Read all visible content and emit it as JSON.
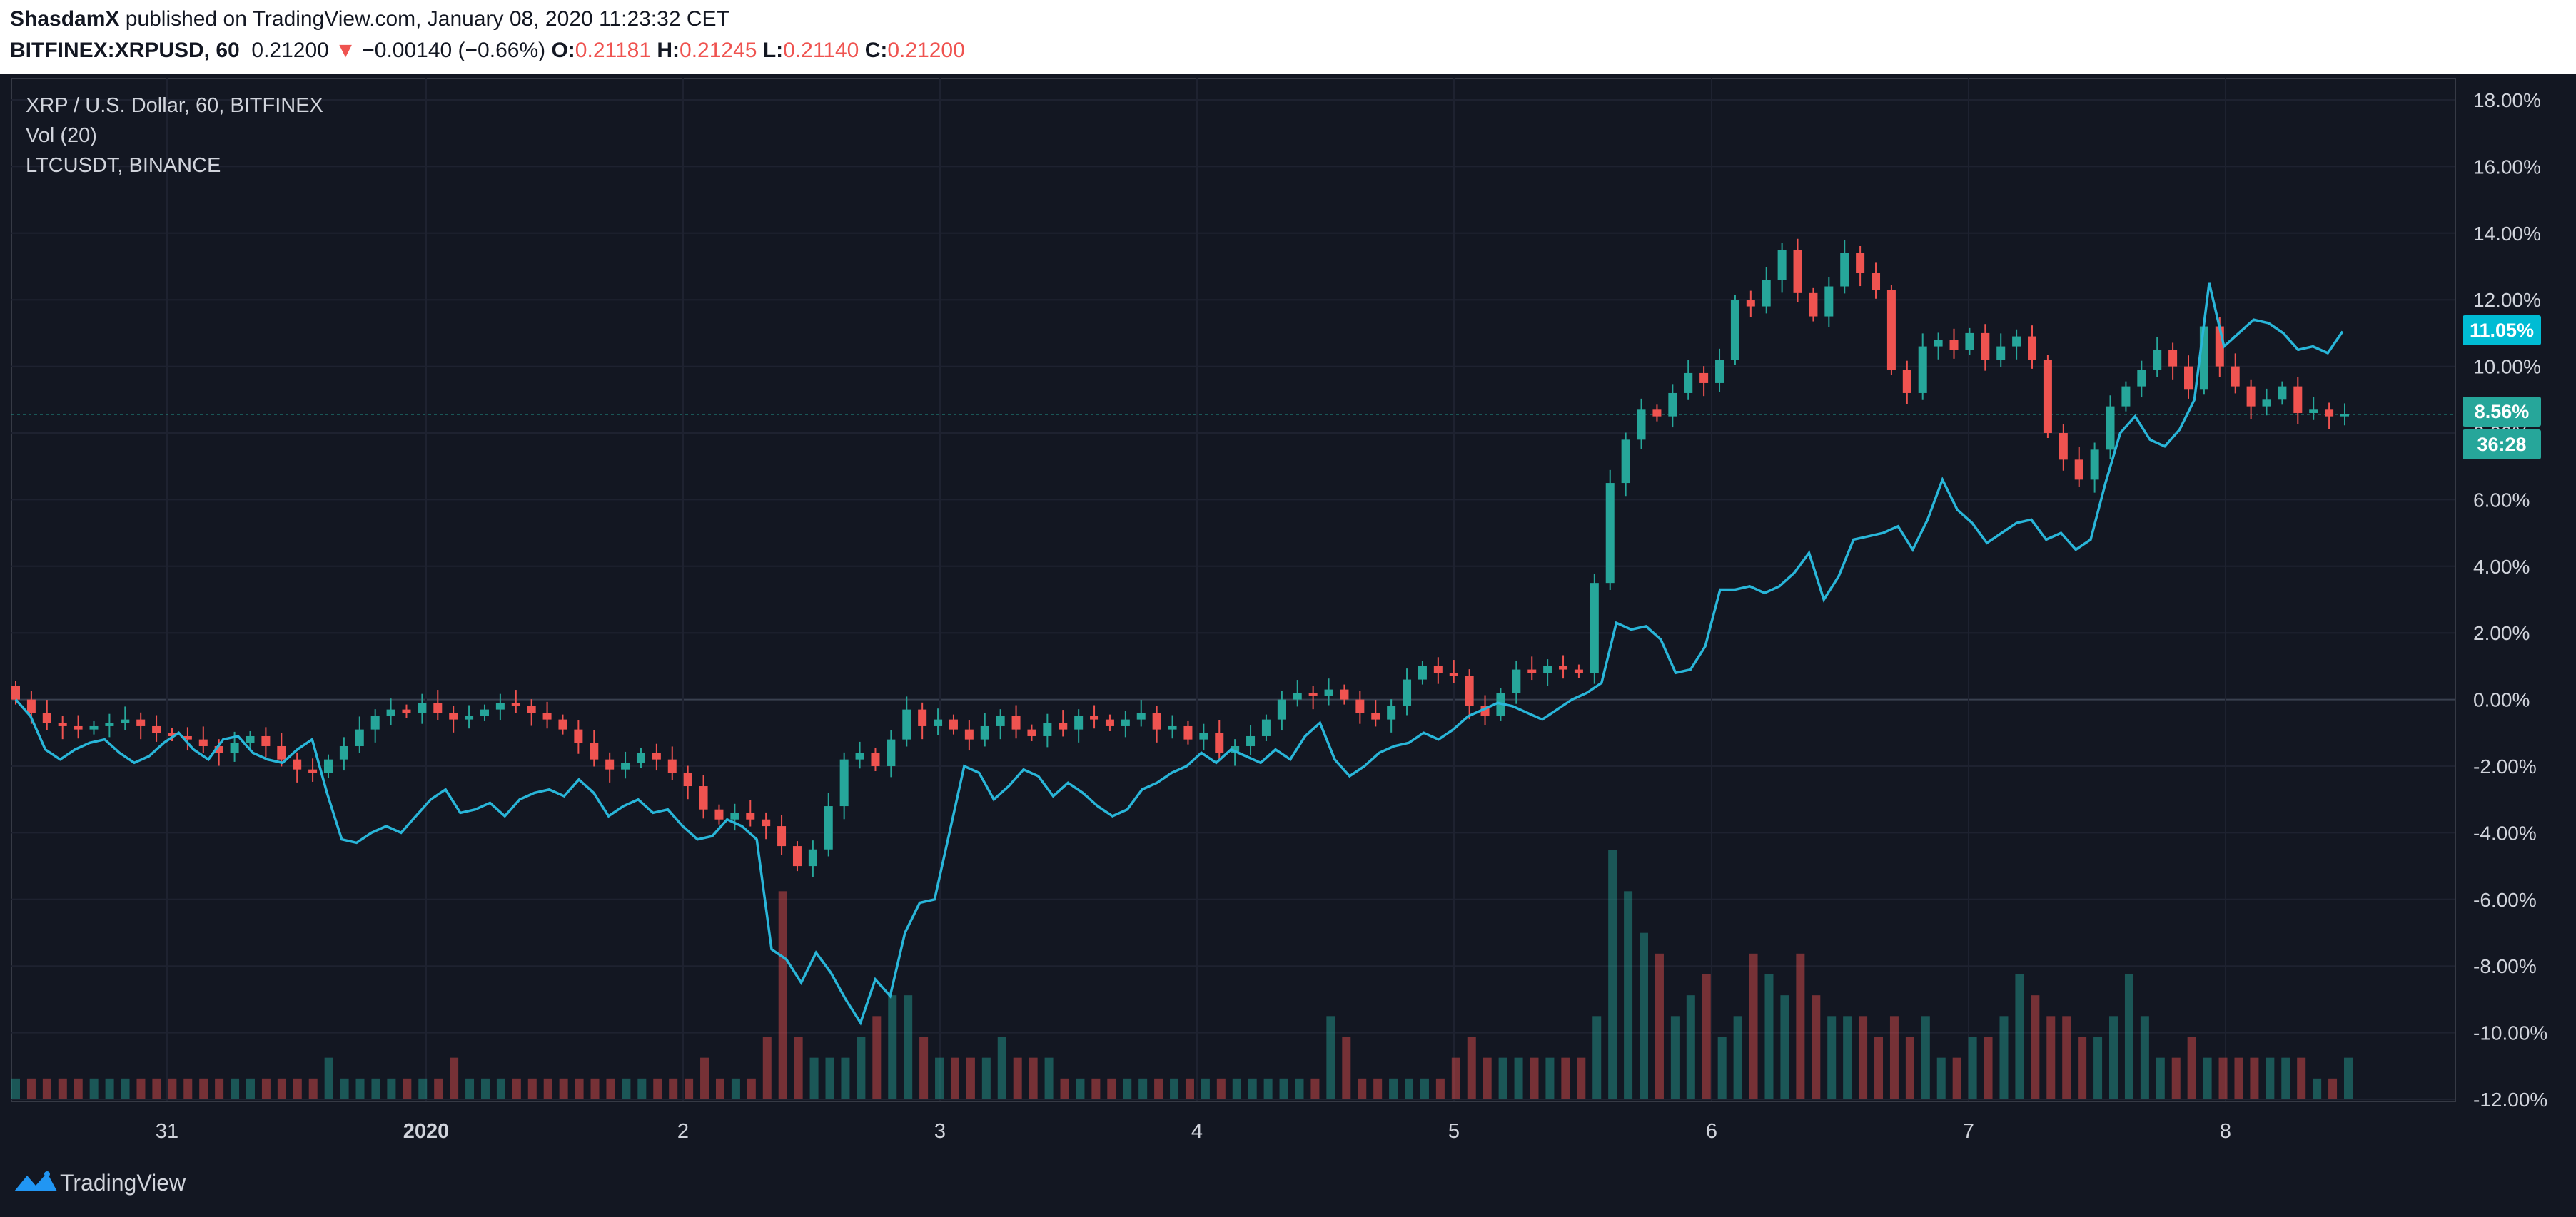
{
  "header": {
    "author": "ShasdamX",
    "published_text": " published on TradingView.com, January 08, 2020 11:23:32 CET",
    "symbol": "BITFINEX:XRPUSD, 60",
    "last": "0.21200",
    "change_arrow": "▼",
    "change": "−0.00140 (−0.66%)",
    "o_label": "O:",
    "o_value": "0.21181",
    "h_label": "H:",
    "h_value": "0.21245",
    "l_label": "L:",
    "l_value": "0.21140",
    "c_label": "C:",
    "c_value": "0.21200"
  },
  "legend": {
    "main": "XRP / U.S. Dollar, 60, BITFINEX",
    "volume": "Vol (20)",
    "compare": "LTCUSDT, BINANCE"
  },
  "price_tags": {
    "ltc": "11.05%",
    "xrp": "8.56%",
    "countdown": "36:28"
  },
  "footer": {
    "brand": "TradingView"
  },
  "colors": {
    "background": "#131722",
    "up": "#26a69a",
    "down": "#ef5350",
    "compare_line": "#29b6d9",
    "grid": "#1e2230",
    "axis_text": "#d1d4dc"
  },
  "chart_data": {
    "type": "line",
    "x_labels": [
      "31",
      "2020",
      "2",
      "3",
      "4",
      "5",
      "6",
      "7",
      "8"
    ],
    "y_ticks": [
      "18.00%",
      "16.00%",
      "14.00%",
      "12.00%",
      "10.00%",
      "8.00%",
      "6.00%",
      "4.00%",
      "2.00%",
      "0.00%",
      "-2.00%",
      "-4.00%",
      "-6.00%",
      "-8.00%",
      "-10.00%",
      "-12.00%"
    ],
    "y_range": [
      -12.0,
      18.0
    ],
    "ltc_series": {
      "name": "LTCUSDT, BINANCE",
      "values": [
        0.0,
        -0.5,
        -1.5,
        -1.8,
        -1.5,
        -1.3,
        -1.2,
        -1.6,
        -1.9,
        -1.7,
        -1.3,
        -1.0,
        -1.5,
        -1.8,
        -1.2,
        -1.1,
        -1.6,
        -1.8,
        -1.9,
        -1.5,
        -1.2,
        -2.8,
        -4.2,
        -4.3,
        -4.0,
        -3.8,
        -4.0,
        -3.5,
        -3.0,
        -2.7,
        -3.4,
        -3.3,
        -3.1,
        -3.5,
        -3.0,
        -2.8,
        -2.7,
        -2.9,
        -2.4,
        -2.8,
        -3.5,
        -3.2,
        -3.0,
        -3.4,
        -3.3,
        -3.8,
        -4.2,
        -4.1,
        -3.6,
        -3.8,
        -4.2,
        -7.5,
        -7.8,
        -8.5,
        -7.6,
        -8.2,
        -9.0,
        -9.7,
        -8.4,
        -8.9,
        -7.0,
        -6.1,
        -6.0,
        -4.0,
        -2.0,
        -2.2,
        -3.0,
        -2.6,
        -2.1,
        -2.3,
        -2.9,
        -2.5,
        -2.8,
        -3.2,
        -3.5,
        -3.3,
        -2.7,
        -2.5,
        -2.2,
        -2.0,
        -1.6,
        -1.9,
        -1.5,
        -1.7,
        -1.9,
        -1.5,
        -1.8,
        -1.1,
        -0.7,
        -1.8,
        -2.3,
        -2.0,
        -1.6,
        -1.4,
        -1.3,
        -1.0,
        -1.2,
        -0.9,
        -0.5,
        -0.3,
        -0.1,
        -0.2,
        -0.4,
        -0.6,
        -0.3,
        0.0,
        0.2,
        0.5,
        2.3,
        2.1,
        2.2,
        1.8,
        0.8,
        0.9,
        1.6,
        3.3,
        3.3,
        3.4,
        3.2,
        3.4,
        3.8,
        4.4,
        3.0,
        3.7,
        4.8,
        4.9,
        5.0,
        5.2,
        4.5,
        5.4,
        6.6,
        5.7,
        5.3,
        4.7,
        5.0,
        5.3,
        5.4,
        4.8,
        5.0,
        4.5,
        4.8,
        6.5,
        8.0,
        8.5,
        7.8,
        7.6,
        8.1,
        9.0,
        12.5,
        10.6,
        11.0,
        11.4,
        11.3,
        11.0,
        10.5,
        10.6,
        10.4,
        11.05
      ]
    },
    "xrp_series": {
      "name": "XRP / U.S. Dollar, 60, BITFINEX",
      "closes": [
        0.0,
        -0.4,
        -0.7,
        -0.8,
        -0.9,
        -0.8,
        -0.7,
        -0.6,
        -0.8,
        -1.0,
        -1.1,
        -1.2,
        -1.4,
        -1.6,
        -1.3,
        -1.1,
        -1.4,
        -1.8,
        -2.1,
        -2.2,
        -1.8,
        -1.4,
        -0.9,
        -0.5,
        -0.3,
        -0.4,
        -0.1,
        -0.4,
        -0.6,
        -0.5,
        -0.3,
        -0.1,
        -0.2,
        -0.4,
        -0.6,
        -0.9,
        -1.3,
        -1.8,
        -2.1,
        -1.9,
        -1.6,
        -1.8,
        -2.2,
        -2.6,
        -3.3,
        -3.6,
        -3.4,
        -3.6,
        -3.8,
        -4.4,
        -5.0,
        -4.5,
        -3.2,
        -1.8,
        -1.6,
        -2.0,
        -1.2,
        -0.3,
        -0.8,
        -0.6,
        -0.9,
        -1.2,
        -0.8,
        -0.5,
        -0.9,
        -1.1,
        -0.7,
        -0.9,
        -0.5,
        -0.6,
        -0.8,
        -0.6,
        -0.4,
        -0.9,
        -0.8,
        -1.2,
        -1.0,
        -1.6,
        -1.4,
        -1.1,
        -0.6,
        0.0,
        0.2,
        0.1,
        0.3,
        0.0,
        -0.4,
        -0.6,
        -0.2,
        0.6,
        1.0,
        0.8,
        0.7,
        -0.2,
        -0.5,
        0.2,
        0.9,
        0.8,
        1.0,
        0.9,
        0.8,
        3.5,
        6.5,
        7.8,
        8.7,
        8.5,
        9.2,
        9.8,
        9.5,
        10.2,
        12.0,
        11.8,
        12.6,
        13.5,
        12.2,
        11.5,
        12.4,
        13.4,
        12.8,
        12.3,
        9.9,
        9.2,
        10.6,
        10.8,
        10.5,
        11.0,
        10.2,
        10.6,
        10.9,
        10.2,
        8.0,
        7.2,
        6.6,
        7.5,
        8.8,
        9.4,
        9.9,
        10.5,
        10.0,
        9.3,
        11.2,
        10.0,
        9.4,
        8.8,
        9.0,
        9.4,
        8.6,
        8.7,
        8.5,
        8.56
      ]
    },
    "volume_series": {
      "name": "Vol (20)",
      "values": [
        1,
        1,
        1,
        1,
        1,
        1,
        1,
        1,
        1,
        1,
        1,
        1,
        1,
        1,
        1,
        1,
        1,
        1,
        1,
        1,
        2,
        1,
        1,
        1,
        1,
        1,
        1,
        1,
        2,
        1,
        1,
        1,
        1,
        1,
        1,
        1,
        1,
        1,
        1,
        1,
        1,
        1,
        1,
        1,
        2,
        1,
        1,
        1,
        3,
        10,
        3,
        2,
        2,
        2,
        3,
        4,
        5,
        5,
        3,
        2,
        2,
        2,
        2,
        3,
        2,
        2,
        2,
        1,
        1,
        1,
        1,
        1,
        1,
        1,
        1,
        1,
        1,
        1,
        1,
        1,
        1,
        1,
        1,
        1,
        4,
        3,
        1,
        1,
        1,
        1,
        1,
        1,
        2,
        3,
        2,
        2,
        2,
        2,
        2,
        2,
        2,
        4,
        12,
        10,
        8,
        7,
        4,
        5,
        6,
        3,
        4,
        7,
        6,
        5,
        7,
        5,
        4,
        4,
        4,
        3,
        4,
        3,
        4,
        2,
        2,
        3,
        3,
        4,
        6,
        5,
        4,
        4,
        3,
        3,
        4,
        6,
        4,
        2,
        2,
        3,
        2,
        2,
        2,
        2,
        2,
        2,
        2,
        1,
        1,
        2
      ]
    }
  }
}
